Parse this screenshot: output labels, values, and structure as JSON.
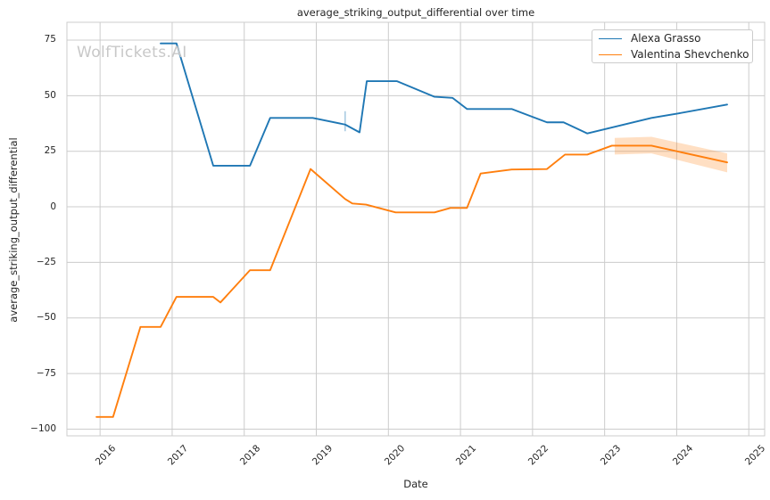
{
  "chart_data": {
    "type": "line",
    "title": "average_striking_output_differential over time",
    "xlabel": "Date",
    "ylabel": "average_striking_output_differential",
    "watermark": "WolfTickets.AI",
    "grid": true,
    "legend_position": "upper right",
    "xlim": [
      2015.54,
      2025.22
    ],
    "ylim": [
      -103,
      83
    ],
    "x_ticks": [
      {
        "v": 2016,
        "label": "2016"
      },
      {
        "v": 2017,
        "label": "2017"
      },
      {
        "v": 2018,
        "label": "2018"
      },
      {
        "v": 2019,
        "label": "2019"
      },
      {
        "v": 2020,
        "label": "2020"
      },
      {
        "v": 2021,
        "label": "2021"
      },
      {
        "v": 2022,
        "label": "2022"
      },
      {
        "v": 2023,
        "label": "2023"
      },
      {
        "v": 2024,
        "label": "2024"
      },
      {
        "v": 2025,
        "label": "2025"
      }
    ],
    "y_ticks": [
      {
        "v": 75,
        "label": "75"
      },
      {
        "v": 50,
        "label": "50"
      },
      {
        "v": 25,
        "label": "25"
      },
      {
        "v": 0,
        "label": "0"
      },
      {
        "v": -25,
        "label": "−25"
      },
      {
        "v": -50,
        "label": "−50"
      },
      {
        "v": -75,
        "label": "−75"
      },
      {
        "v": -100,
        "label": "−100"
      }
    ],
    "series": [
      {
        "name": "Alexa Grasso",
        "color": "#1f77b4",
        "x": [
          2016.84,
          2017.06,
          2017.57,
          2018.08,
          2018.36,
          2018.95,
          2019.4,
          2019.6,
          2019.7,
          2020.12,
          2020.64,
          2020.89,
          2021.09,
          2021.71,
          2022.2,
          2022.43,
          2022.76,
          2023.65,
          2024.02,
          2024.7
        ],
        "y": [
          73.5,
          73.5,
          18.5,
          18.5,
          40,
          40,
          37,
          33.5,
          56.5,
          56.5,
          49.5,
          49,
          44,
          44,
          38,
          38,
          33,
          40,
          42,
          46
        ]
      },
      {
        "name": "Valentina Shevchenko",
        "color": "#ff7f0e",
        "x": [
          2015.95,
          2016.18,
          2016.56,
          2016.84,
          2017.06,
          2017.57,
          2017.67,
          2018.08,
          2018.36,
          2018.92,
          2019.4,
          2019.5,
          2019.69,
          2020.1,
          2020.64,
          2020.86,
          2021.09,
          2021.28,
          2021.71,
          2022.2,
          2022.45,
          2022.76,
          2023.1,
          2023.65,
          2024.7
        ],
        "y": [
          -94.5,
          -94.5,
          -54,
          -54,
          -40.5,
          -40.5,
          -43,
          -28.5,
          -28.5,
          17,
          3.5,
          1.5,
          1,
          -2.5,
          -2.5,
          -0.5,
          -0.5,
          15,
          16.8,
          17,
          23.5,
          23.5,
          27.5,
          27.5,
          20
        ]
      }
    ],
    "confidence_band": {
      "series": "Valentina Shevchenko",
      "color": "#ff7f0e",
      "opacity": 0.25,
      "x": [
        2023.14,
        2023.65,
        2024.7
      ],
      "upper": [
        31,
        31.5,
        24
      ],
      "lower": [
        23.5,
        24,
        15.5
      ]
    },
    "error_tick": {
      "series": "Alexa Grasso",
      "color": "#1f77b4",
      "opacity": 0.4,
      "x": 2019.4,
      "y_low": 34,
      "y_high": 43
    },
    "colors": {
      "grid": "#cccccc",
      "text": "#262626",
      "watermark": "#c8c8c8",
      "background": "#ffffff"
    }
  }
}
